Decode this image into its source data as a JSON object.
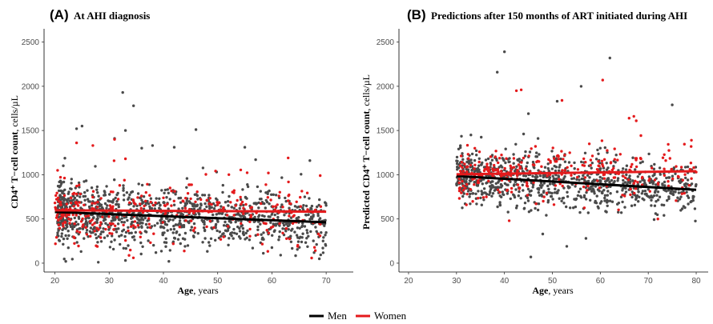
{
  "colors": {
    "men": "#4a4a4a",
    "women": "#e41a1c",
    "men_line": "#000000",
    "women_line": "#e41a1c"
  },
  "legend": {
    "items": [
      {
        "label": "Men",
        "color": "#000000"
      },
      {
        "label": "Women",
        "color": "#e41a1c"
      }
    ]
  },
  "chart_data": [
    {
      "type": "scatter",
      "panel": "(A)",
      "title": "At AHI diagnosis",
      "xlabel_bold": "Age",
      "xlabel_rest": ",  years",
      "ylabel_bold": "CD4⁺ T−cell count",
      "ylabel_rest": ",  cells/µL",
      "xlim": [
        18,
        75
      ],
      "ylim": [
        -100,
        2650
      ],
      "xticks": [
        20,
        30,
        40,
        50,
        60,
        70
      ],
      "yticks": [
        0,
        500,
        1000,
        1500,
        2000,
        2500
      ],
      "grid": false,
      "series": [
        {
          "name": "Men",
          "x_range": [
            20.5,
            70
          ],
          "y_center": 560,
          "y_spread": 230,
          "count": 1100,
          "seed": 11,
          "outliers": [
            [
              32.5,
              1930
            ],
            [
              34.5,
              1780
            ],
            [
              33,
              1500
            ],
            [
              25,
              1550
            ],
            [
              24,
              1520
            ],
            [
              46,
              1510
            ],
            [
              31,
              1410
            ],
            [
              36,
              1300
            ],
            [
              38,
              1330
            ],
            [
              42,
              1310
            ],
            [
              55,
              1310
            ],
            [
              57,
              1170
            ],
            [
              67,
              1160
            ],
            [
              22,
              20
            ],
            [
              33,
              30
            ],
            [
              41,
              20
            ],
            [
              28,
              10
            ]
          ],
          "fit": {
            "x": [
              20,
              70
            ],
            "y": [
              578,
              462
            ]
          }
        },
        {
          "name": "Women",
          "x_range": [
            20,
            69
          ],
          "y_center": 600,
          "y_spread": 240,
          "count": 330,
          "seed": 23,
          "outliers": [
            [
              31,
              1400
            ],
            [
              24,
              1360
            ],
            [
              27,
              1330
            ],
            [
              63,
              1190
            ],
            [
              68,
              600
            ],
            [
              69,
              640
            ],
            [
              20.5,
              1050
            ],
            [
              33,
              1180
            ]
          ],
          "fit": {
            "x": [
              20,
              70
            ],
            "y": [
              598,
              582
            ]
          }
        }
      ]
    },
    {
      "type": "scatter",
      "panel": "(B)",
      "title": "Predictions after 150 months of ART initiated during AHI",
      "xlabel_bold": "Age",
      "xlabel_rest": ",  years",
      "ylabel_bold": "Predicted CD4⁺ T−cell count",
      "ylabel_rest": ",  cells/µL",
      "xlim": [
        18,
        82.5
      ],
      "ylim": [
        -100,
        2650
      ],
      "xticks": [
        20,
        30,
        40,
        50,
        60,
        70,
        80
      ],
      "yticks": [
        0,
        500,
        1000,
        1500,
        2000,
        2500
      ],
      "grid": false,
      "series": [
        {
          "name": "Men",
          "x_range": [
            30,
            80
          ],
          "y_center": 950,
          "y_spread": 200,
          "count": 900,
          "seed": 37,
          "outliers": [
            [
              40,
              2390
            ],
            [
              62,
              2320
            ],
            [
              38.5,
              2160
            ],
            [
              56,
              2000
            ],
            [
              51,
              1830
            ],
            [
              75,
              1790
            ],
            [
              45,
              1690
            ],
            [
              44,
              1460
            ],
            [
              33,
              1450
            ],
            [
              47,
              1410
            ],
            [
              60,
              1300
            ],
            [
              45.5,
              70
            ],
            [
              53,
              190
            ],
            [
              57,
              280
            ],
            [
              48,
              330
            ],
            [
              79,
              700
            ]
          ],
          "fit": {
            "x": [
              30,
              80
            ],
            "y": [
              985,
              830
            ]
          }
        },
        {
          "name": "Women",
          "x_range": [
            30.5,
            79
          ],
          "y_center": 1020,
          "y_spread": 200,
          "count": 280,
          "seed": 53,
          "outliers": [
            [
              60.5,
              2070
            ],
            [
              43.5,
              1960
            ],
            [
              42.5,
              1950
            ],
            [
              52,
              1840
            ],
            [
              67,
              1660
            ],
            [
              66,
              1640
            ],
            [
              67.5,
              1610
            ],
            [
              79,
              1390
            ],
            [
              79.5,
              1080
            ],
            [
              80,
              1030
            ],
            [
              41,
              480
            ],
            [
              72,
              500
            ]
          ],
          "fit": {
            "x": [
              30,
              80
            ],
            "y": [
              1005,
              1040
            ]
          }
        }
      ]
    }
  ]
}
